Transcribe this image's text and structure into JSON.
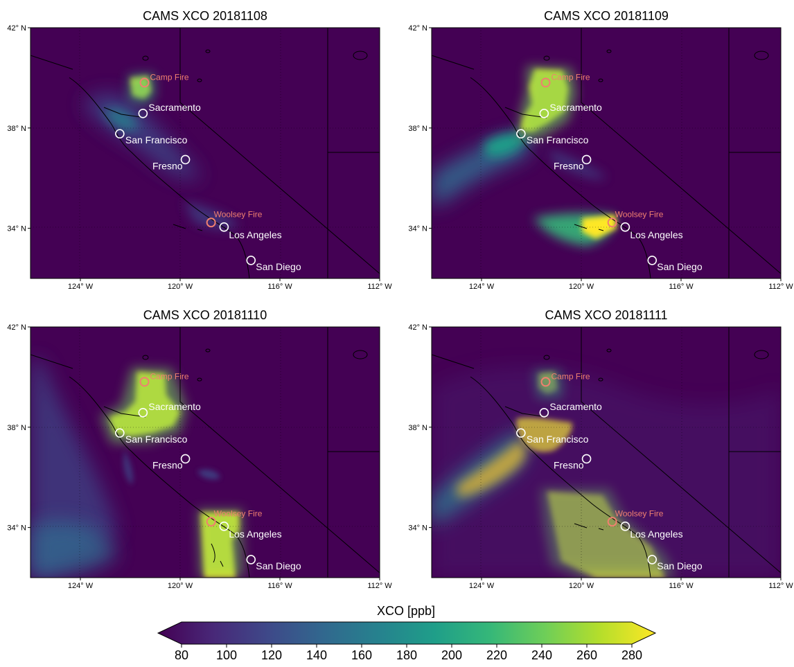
{
  "colors": {
    "background": "#440154",
    "fire_marker": "#f08070",
    "city_marker": "#ffffff",
    "viridis_stops": [
      "#440154",
      "#482878",
      "#3e4989",
      "#31688e",
      "#26828e",
      "#1f9e89",
      "#35b779",
      "#6ece58",
      "#b5de2b",
      "#fde725"
    ]
  },
  "map": {
    "lon_ticks": [
      "124° W",
      "120° W",
      "116° W",
      "112° W"
    ],
    "lat_ticks": [
      "42° N",
      "38° N",
      "34° N"
    ]
  },
  "panels": [
    {
      "title": "CAMS XCO 20181108"
    },
    {
      "title": "CAMS XCO 20181109"
    },
    {
      "title": "CAMS XCO 20181110"
    },
    {
      "title": "CAMS XCO 20181111"
    }
  ],
  "fires": [
    {
      "name": "Camp Fire",
      "lon": -121.43,
      "lat": 39.81
    },
    {
      "name": "Woolsey Fire",
      "lon": -118.76,
      "lat": 34.23
    }
  ],
  "cities": [
    {
      "name": "Sacramento",
      "lon": -121.49,
      "lat": 38.58
    },
    {
      "name": "San Francisco",
      "lon": -122.42,
      "lat": 37.77
    },
    {
      "name": "Fresno",
      "lon": -119.79,
      "lat": 36.74
    },
    {
      "name": "Los Angeles",
      "lon": -118.24,
      "lat": 34.05
    },
    {
      "name": "San Diego",
      "lon": -117.16,
      "lat": 32.72
    }
  ],
  "colorbar": {
    "title": "XCO [ppb]",
    "ticks": [
      "80",
      "100",
      "120",
      "140",
      "160",
      "180",
      "200",
      "220",
      "240",
      "260",
      "280"
    ],
    "min": 80,
    "max": 280,
    "extend": "both"
  }
}
